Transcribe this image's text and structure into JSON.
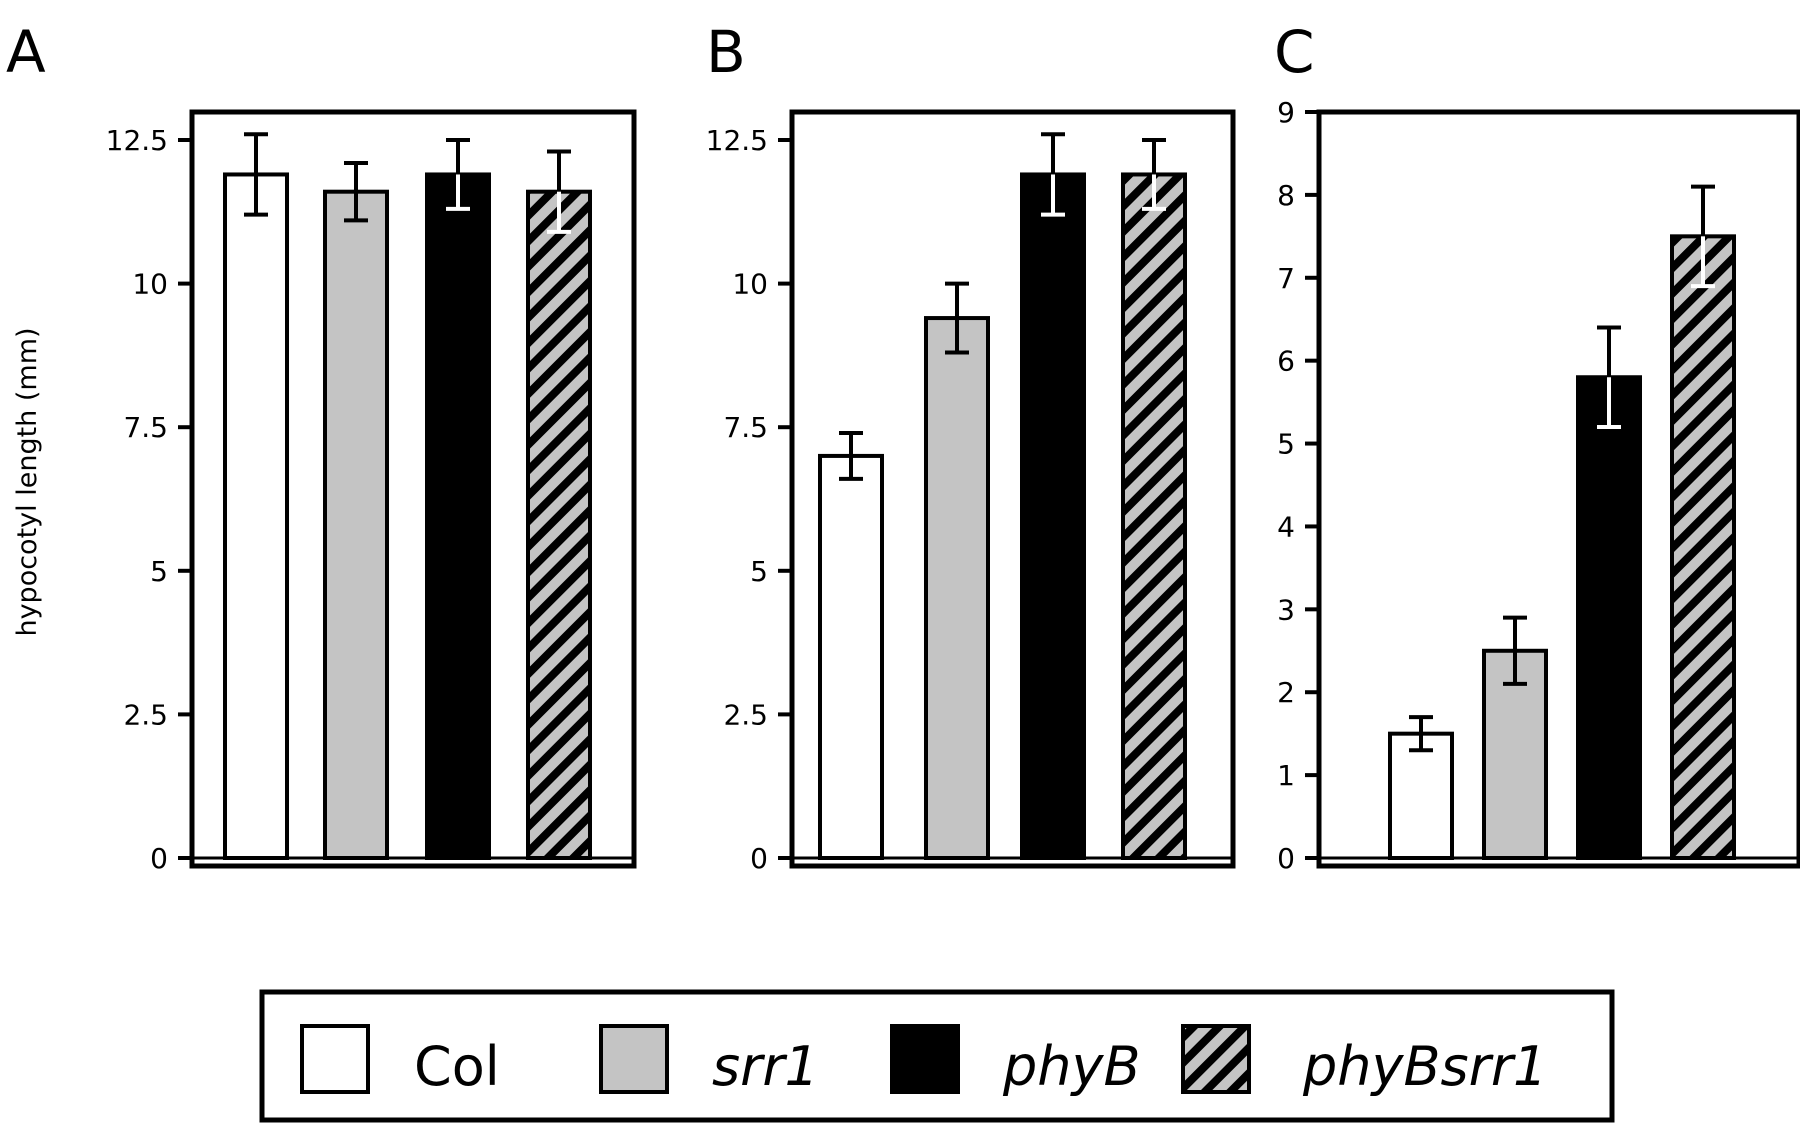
{
  "legend": [
    {
      "label": "Col",
      "fill": "white",
      "italic": false
    },
    {
      "label": "srr1",
      "fill": "gray",
      "italic": true
    },
    {
      "label": "phyB",
      "fill": "black",
      "italic": true
    },
    {
      "label": "phyBsrr1",
      "fill": "hatch",
      "italic": true
    }
  ],
  "colors": {
    "gray": "#c4c4c4",
    "black": "#000000",
    "white": "#ffffff",
    "stroke": "#000000"
  },
  "chart_data": [
    {
      "panel": "A",
      "type": "bar",
      "ylabel": "hypocotyl length (mm)",
      "ylim": [
        0,
        13.5
      ],
      "yticks": [
        0,
        2.5,
        5,
        7.5,
        10,
        12.5
      ],
      "ytick_labels": [
        "0",
        "2.5",
        "5",
        "7.5",
        "10",
        "12.5"
      ],
      "categories": [
        "Col",
        "srr1",
        "phyB",
        "phyBsrr1"
      ],
      "values": [
        11.9,
        11.6,
        11.9,
        11.6
      ],
      "errors": [
        0.7,
        0.5,
        0.6,
        0.7
      ]
    },
    {
      "panel": "B",
      "type": "bar",
      "ylabel": "",
      "ylim": [
        0,
        13.5
      ],
      "yticks": [
        0,
        2.5,
        5,
        7.5,
        10,
        12.5
      ],
      "ytick_labels": [
        "0",
        "2.5",
        "5",
        "7.5",
        "10",
        "12.5"
      ],
      "categories": [
        "Col",
        "srr1",
        "phyB",
        "phyBsrr1"
      ],
      "values": [
        7.0,
        9.4,
        11.9,
        11.9
      ],
      "errors": [
        0.4,
        0.6,
        0.7,
        0.6
      ]
    },
    {
      "panel": "C",
      "type": "bar",
      "ylabel": "",
      "ylim": [
        0,
        9
      ],
      "yticks": [
        0,
        1,
        2,
        3,
        4,
        5,
        6,
        7,
        8,
        9
      ],
      "ytick_labels": [
        "0",
        "1",
        "2",
        "3",
        "4",
        "5",
        "6",
        "7",
        "8",
        "9"
      ],
      "categories": [
        "Col",
        "srr1",
        "phyB",
        "phyBsrr1"
      ],
      "values": [
        1.5,
        2.5,
        5.8,
        7.5
      ],
      "errors": [
        0.2,
        0.4,
        0.6,
        0.6
      ]
    }
  ]
}
